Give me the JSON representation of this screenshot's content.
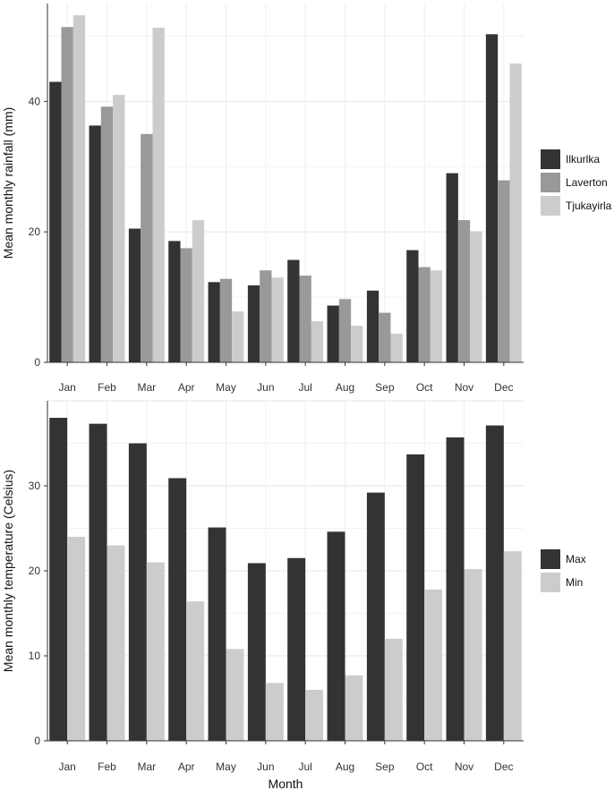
{
  "chart_data": [
    {
      "type": "bar",
      "categories": [
        "Jan",
        "Feb",
        "Mar",
        "Apr",
        "May",
        "Jun",
        "Jul",
        "Aug",
        "Sep",
        "Oct",
        "Nov",
        "Dec"
      ],
      "ylabel": "Mean monthly rainfall (mm)",
      "xlabel": "",
      "ylim": [
        0,
        55
      ],
      "yticks": [
        0,
        20,
        40
      ],
      "grid": true,
      "legend_position": "right",
      "series": [
        {
          "name": "Ilkurlka",
          "color": "#333333",
          "values": [
            43.0,
            36.3,
            20.5,
            18.6,
            12.3,
            11.8,
            15.7,
            8.7,
            11.0,
            17.2,
            29.0,
            50.3
          ]
        },
        {
          "name": "Laverton",
          "color": "#999999",
          "values": [
            51.4,
            39.2,
            35.0,
            17.5,
            12.8,
            14.1,
            13.3,
            9.7,
            7.6,
            14.6,
            21.8,
            27.9
          ]
        },
        {
          "name": "Tjukayirla",
          "color": "#cccccc",
          "values": [
            53.2,
            41.0,
            51.3,
            21.8,
            7.8,
            13.0,
            6.3,
            5.6,
            4.4,
            14.1,
            20.1,
            45.8
          ]
        }
      ]
    },
    {
      "type": "bar",
      "categories": [
        "Jan",
        "Feb",
        "Mar",
        "Apr",
        "May",
        "Jun",
        "Jul",
        "Aug",
        "Sep",
        "Oct",
        "Nov",
        "Dec"
      ],
      "ylabel": "Mean monthly temperature (Celsius)",
      "xlabel": "Month",
      "ylim": [
        0,
        40
      ],
      "yticks": [
        0,
        10,
        20,
        30
      ],
      "grid": true,
      "legend_position": "right",
      "series": [
        {
          "name": "Max",
          "color": "#333333",
          "values": [
            38.0,
            37.3,
            35.0,
            30.9,
            25.1,
            20.9,
            21.5,
            24.6,
            29.2,
            33.7,
            35.7,
            37.1
          ]
        },
        {
          "name": "Min",
          "color": "#cccccc",
          "values": [
            24.0,
            23.0,
            21.0,
            16.4,
            10.8,
            6.8,
            6.0,
            7.7,
            12.0,
            17.8,
            20.2,
            22.3
          ]
        }
      ]
    }
  ]
}
